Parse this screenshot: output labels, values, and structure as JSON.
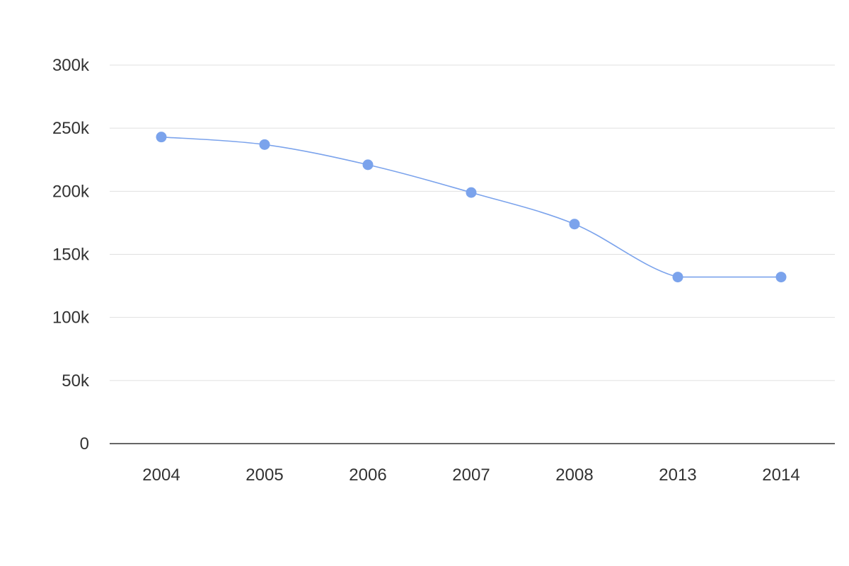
{
  "chart_data": {
    "type": "line",
    "title": "",
    "xlabel": "",
    "ylabel": "",
    "categories": [
      "2004",
      "2005",
      "2006",
      "2007",
      "2008",
      "2013",
      "2014"
    ],
    "series": [
      {
        "values": [
          243000,
          237000,
          221000,
          199000,
          174000,
          132000,
          132000
        ],
        "color": "#7ba3ec"
      }
    ],
    "ylim": [
      0,
      300000
    ],
    "y_ticks": [
      0,
      50000,
      100000,
      150000,
      200000,
      250000,
      300000
    ],
    "y_tick_labels": [
      "0",
      "50k",
      "100k",
      "150k",
      "200k",
      "250k",
      "300k"
    ],
    "grid": true,
    "legend": "none",
    "smooth": true,
    "markers": true
  }
}
